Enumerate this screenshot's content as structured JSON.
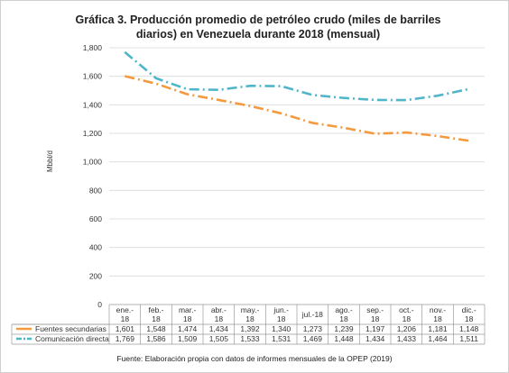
{
  "chart_data": {
    "type": "line",
    "title": "Gráfica 3. Producción promedio de petróleo crudo (miles de barriles diarios) en Venezuela durante 2018 (mensual)",
    "ylabel": "Mbbl/d",
    "ylim": [
      0,
      1800
    ],
    "yticks": [
      "0",
      "200",
      "400",
      "600",
      "800",
      "1,000",
      "1,200",
      "1,400",
      "1,600",
      "1,800"
    ],
    "grid": true,
    "categories": [
      [
        "ene.-",
        "18"
      ],
      [
        "feb.-",
        "18"
      ],
      [
        "mar.-",
        "18"
      ],
      [
        "abr.-",
        "18"
      ],
      [
        "may.-",
        "18"
      ],
      [
        "jun.-",
        "18"
      ],
      [
        "jul.-18"
      ],
      [
        "ago.-",
        "18"
      ],
      [
        "sep.-",
        "18"
      ],
      [
        "oct.-",
        "18"
      ],
      [
        "nov.-",
        "18"
      ],
      [
        "dic.-",
        "18"
      ]
    ],
    "series": [
      {
        "name": "Fuentes secundarias",
        "color": "#f39a3e",
        "style": "dash-dot",
        "values": [
          1601,
          1548,
          1474,
          1434,
          1392,
          1340,
          1273,
          1239,
          1197,
          1206,
          1181,
          1148
        ],
        "labels": [
          "1,601",
          "1,548",
          "1,474",
          "1,434",
          "1,392",
          "1,340",
          "1,273",
          "1,239",
          "1,197",
          "1,206",
          "1,181",
          "1,148"
        ]
      },
      {
        "name": "Comunicación directa",
        "color": "#4fb5c9",
        "style": "dash-dot",
        "values": [
          1769,
          1586,
          1509,
          1505,
          1533,
          1531,
          1469,
          1448,
          1434,
          1433,
          1464,
          1511
        ],
        "labels": [
          "1,769",
          "1,586",
          "1,509",
          "1,505",
          "1,533",
          "1,531",
          "1,469",
          "1,448",
          "1,434",
          "1,433",
          "1,464",
          "1,511"
        ]
      }
    ],
    "legend": "data-table-below"
  },
  "source": "Fuente: Elaboración propia con datos de informes mensuales de la OPEP (2019)"
}
